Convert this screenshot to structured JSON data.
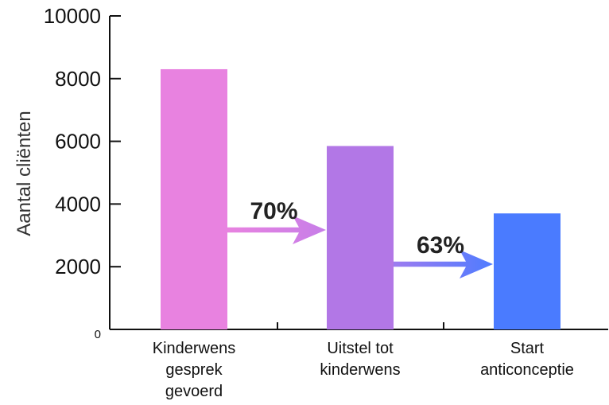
{
  "chart_data": {
    "type": "bar",
    "title": "",
    "xlabel": "",
    "ylabel": "Aantal cliënten",
    "ylim": [
      0,
      10000
    ],
    "yticks": [
      {
        "value": 0,
        "label": "0"
      },
      {
        "value": 2000,
        "label": "2000"
      },
      {
        "value": 4000,
        "label": "4000"
      },
      {
        "value": 6000,
        "label": "6000"
      },
      {
        "value": 8000,
        "label": "8000"
      },
      {
        "value": 10000,
        "label": "10000"
      }
    ],
    "grid": false,
    "categories": [
      [
        "Kinderwens",
        "gesprek",
        "gevoerd"
      ],
      [
        "Uitstel tot",
        "kinderwens"
      ],
      [
        "Start",
        "anticonceptie"
      ]
    ],
    "values": [
      8300,
      5850,
      3700
    ],
    "colors": [
      "#e882e0",
      "#b277e6",
      "#4a7bff"
    ],
    "annotations": [
      {
        "label": "70%",
        "from": 0,
        "to": 1,
        "color": "#d887e6"
      },
      {
        "label": "63%",
        "from": 1,
        "to": 2,
        "color": "#6f80f5"
      }
    ]
  }
}
